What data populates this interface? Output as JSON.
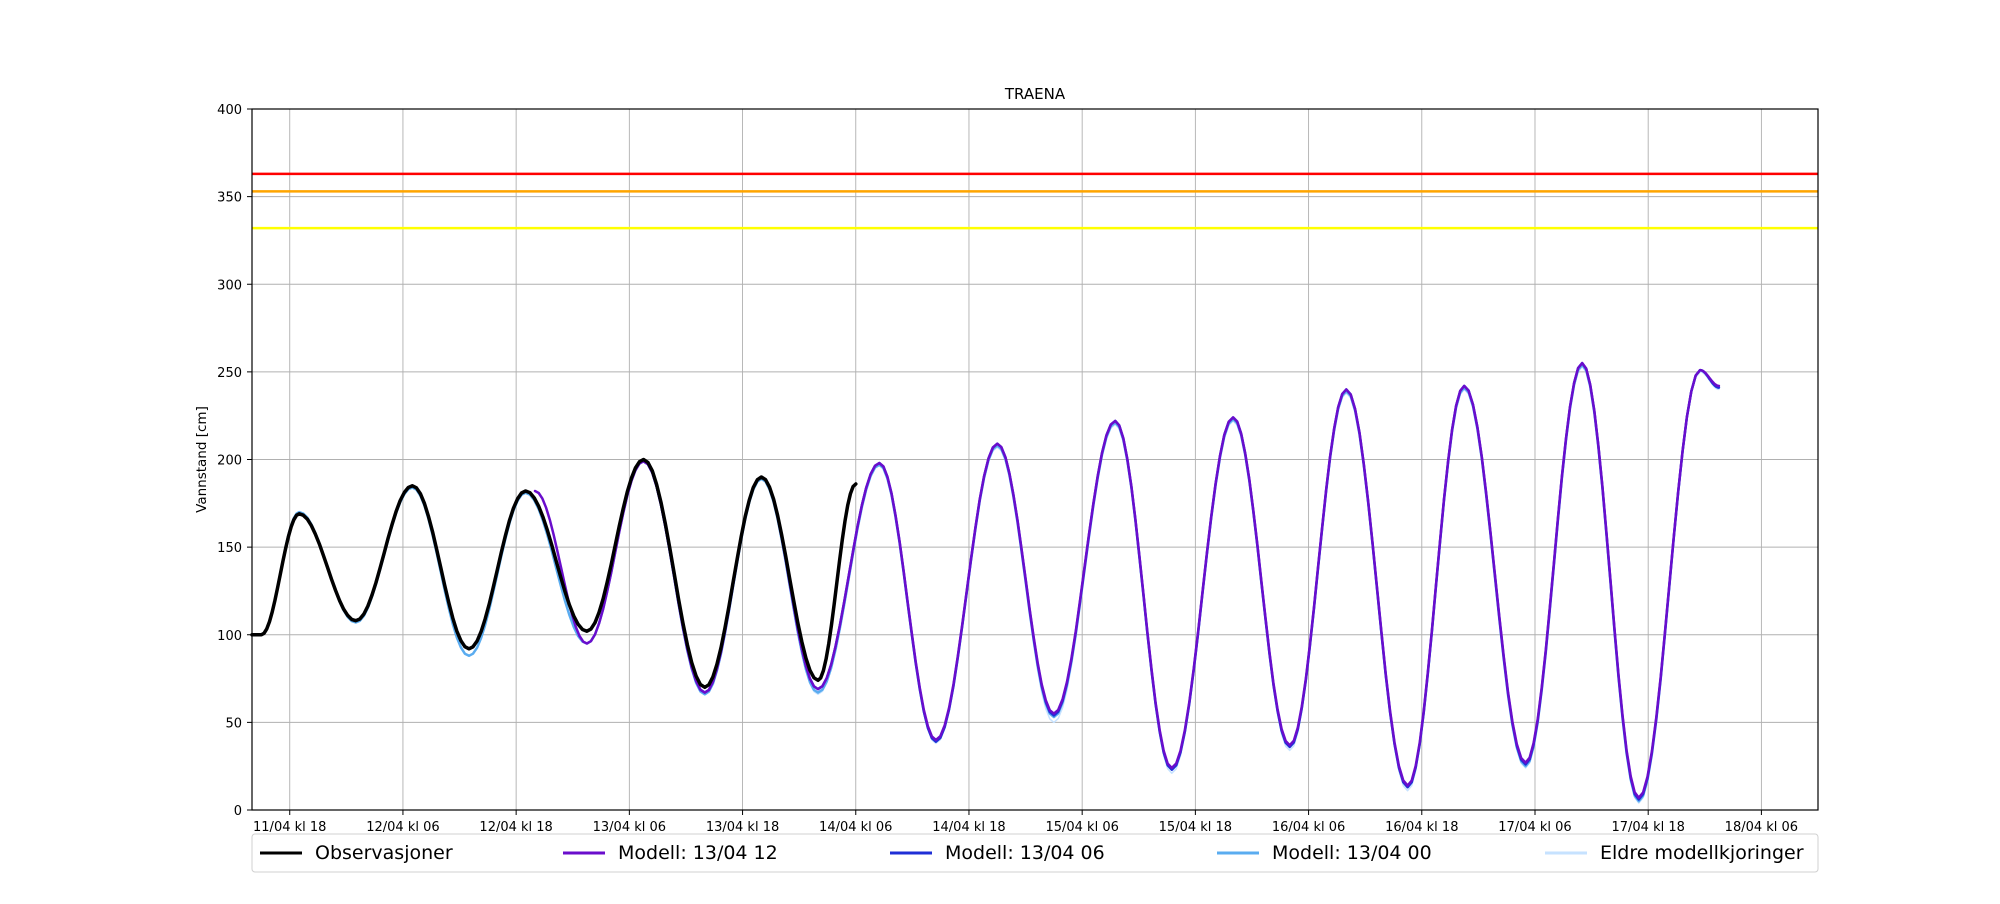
{
  "chart_data": {
    "type": "line",
    "title": "TRAENA",
    "xlabel": "",
    "ylabel": "Vannstand [cm]",
    "ylim": [
      0,
      400
    ],
    "yticks": [
      0,
      50,
      100,
      150,
      200,
      250,
      300,
      350,
      400
    ],
    "xlim": [
      "2019-04-11T14:00",
      "2019-04-18T12:00"
    ],
    "xticks": [
      {
        "t": "2019-04-11T18:00",
        "label": "11/04 kl 18"
      },
      {
        "t": "2019-04-12T06:00",
        "label": "12/04 kl 06"
      },
      {
        "t": "2019-04-12T18:00",
        "label": "12/04 kl 18"
      },
      {
        "t": "2019-04-13T06:00",
        "label": "13/04 kl 06"
      },
      {
        "t": "2019-04-13T18:00",
        "label": "13/04 kl 18"
      },
      {
        "t": "2019-04-14T06:00",
        "label": "14/04 kl 06"
      },
      {
        "t": "2019-04-14T18:00",
        "label": "14/04 kl 18"
      },
      {
        "t": "2019-04-15T06:00",
        "label": "15/04 kl 06"
      },
      {
        "t": "2019-04-15T18:00",
        "label": "15/04 kl 18"
      },
      {
        "t": "2019-04-16T06:00",
        "label": "16/04 kl 06"
      },
      {
        "t": "2019-04-16T18:00",
        "label": "16/04 kl 18"
      },
      {
        "t": "2019-04-17T06:00",
        "label": "17/04 kl 06"
      },
      {
        "t": "2019-04-17T18:00",
        "label": "17/04 kl 18"
      },
      {
        "t": "2019-04-18T06:00",
        "label": "18/04 kl 06"
      }
    ],
    "grid": true,
    "legend_position": "bottom",
    "thresholds": [
      {
        "value": 363,
        "color": "#ff0000"
      },
      {
        "value": 353,
        "color": "#ffa500"
      },
      {
        "value": 332,
        "color": "#ffff00"
      }
    ],
    "series": [
      {
        "name": "Eldre modellkjoringer",
        "color": "#c6e2ff",
        "width": 1.5,
        "x": [
          "2019-04-11T15:00",
          "2019-04-11T19:00",
          "2019-04-12T01:00",
          "2019-04-12T07:00",
          "2019-04-12T13:00",
          "2019-04-12T19:00",
          "2019-04-13T01:30",
          "2019-04-13T07:30",
          "2019-04-13T14:00",
          "2019-04-13T20:00",
          "2019-04-14T02:00",
          "2019-04-14T08:30",
          "2019-04-14T14:30",
          "2019-04-14T21:00",
          "2019-04-15T03:00",
          "2019-04-15T09:30",
          "2019-04-15T15:30",
          "2019-04-15T22:00",
          "2019-04-16T04:00",
          "2019-04-16T10:00",
          "2019-04-16T16:30",
          "2019-04-16T22:30",
          "2019-04-17T05:00",
          "2019-04-17T11:00",
          "2019-04-17T17:00",
          "2019-04-17T23:30",
          "2019-04-18T01:30"
        ],
        "y": [
          100,
          170,
          107,
          185,
          88,
          182,
          95,
          200,
          66,
          190,
          66,
          198,
          38,
          207,
          50,
          220,
          21,
          222,
          34,
          238,
          11,
          240,
          24,
          253,
          4,
          250,
          240
        ]
      },
      {
        "name": "Modell: 13/04 00",
        "color": "#5aacf0",
        "width": 2.5,
        "x": [
          "2019-04-11T15:00",
          "2019-04-11T19:00",
          "2019-04-12T01:00",
          "2019-04-12T07:00",
          "2019-04-12T13:00",
          "2019-04-12T19:00",
          "2019-04-13T01:30",
          "2019-04-13T07:30",
          "2019-04-13T14:00",
          "2019-04-13T20:00",
          "2019-04-14T02:00",
          "2019-04-14T08:30",
          "2019-04-14T14:30",
          "2019-04-14T21:00",
          "2019-04-15T03:00",
          "2019-04-15T09:30",
          "2019-04-15T15:30",
          "2019-04-15T22:00",
          "2019-04-16T04:00",
          "2019-04-16T10:00",
          "2019-04-16T16:30",
          "2019-04-16T22:30",
          "2019-04-17T05:00",
          "2019-04-17T11:00",
          "2019-04-17T17:00",
          "2019-04-17T23:30",
          "2019-04-18T01:30"
        ],
        "y": [
          100,
          170,
          107,
          184,
          88,
          181,
          95,
          199,
          66,
          189,
          67,
          197,
          39,
          208,
          53,
          221,
          23,
          223,
          36,
          239,
          13,
          241,
          25,
          254,
          5,
          251,
          241
        ]
      },
      {
        "name": "Modell: 13/04 06",
        "color": "#1f2fd6",
        "width": 2.5,
        "x": [
          "2019-04-13T07:30",
          "2019-04-13T14:00",
          "2019-04-13T20:00",
          "2019-04-14T02:00",
          "2019-04-14T08:30",
          "2019-04-14T14:30",
          "2019-04-14T21:00",
          "2019-04-15T03:00",
          "2019-04-15T09:30",
          "2019-04-15T15:30",
          "2019-04-15T22:00",
          "2019-04-16T04:00",
          "2019-04-16T10:00",
          "2019-04-16T16:30",
          "2019-04-16T22:30",
          "2019-04-17T05:00",
          "2019-04-17T11:00",
          "2019-04-17T17:00",
          "2019-04-17T23:30",
          "2019-04-18T01:30"
        ],
        "y": [
          199,
          67,
          190,
          69,
          198,
          39,
          209,
          54,
          222,
          23,
          224,
          36,
          240,
          13,
          242,
          26,
          255,
          6,
          251,
          241
        ]
      },
      {
        "name": "Modell: 13/04 12",
        "color": "#6a0dcc",
        "width": 2.5,
        "x": [
          "2019-04-12T20:00",
          "2019-04-13T01:30",
          "2019-04-13T07:30",
          "2019-04-13T14:00",
          "2019-04-13T20:00",
          "2019-04-14T02:00",
          "2019-04-14T08:30",
          "2019-04-14T14:30",
          "2019-04-14T21:00",
          "2019-04-15T03:00",
          "2019-04-15T09:30",
          "2019-04-15T15:30",
          "2019-04-15T22:00",
          "2019-04-16T04:00",
          "2019-04-16T10:00",
          "2019-04-16T16:30",
          "2019-04-16T22:30",
          "2019-04-17T05:00",
          "2019-04-17T11:00",
          "2019-04-17T17:00",
          "2019-04-17T23:30",
          "2019-04-18T01:30"
        ],
        "y": [
          182,
          95,
          199,
          67,
          190,
          69,
          198,
          40,
          209,
          55,
          222,
          24,
          224,
          37,
          240,
          14,
          242,
          27,
          255,
          7,
          251,
          242
        ]
      },
      {
        "name": "Observasjoner",
        "color": "#000000",
        "width": 3.5,
        "x": [
          "2019-04-11T14:00",
          "2019-04-11T15:00",
          "2019-04-11T19:00",
          "2019-04-12T01:00",
          "2019-04-12T07:00",
          "2019-04-12T13:00",
          "2019-04-12T19:00",
          "2019-04-13T01:30",
          "2019-04-13T07:30",
          "2019-04-13T14:00",
          "2019-04-13T20:00",
          "2019-04-14T02:00",
          "2019-04-14T06:00"
        ],
        "y": [
          100,
          100,
          169,
          108,
          185,
          92,
          182,
          102,
          200,
          70,
          190,
          74,
          186
        ]
      }
    ],
    "legend": [
      {
        "name": "Observasjoner",
        "color": "#000000"
      },
      {
        "name": "Modell: 13/04 12",
        "color": "#6a0dcc"
      },
      {
        "name": "Modell: 13/04 06",
        "color": "#1f2fd6"
      },
      {
        "name": "Modell: 13/04 00",
        "color": "#5aacf0"
      },
      {
        "name": "Eldre modellkjoringer",
        "color": "#c6e2ff"
      }
    ]
  }
}
